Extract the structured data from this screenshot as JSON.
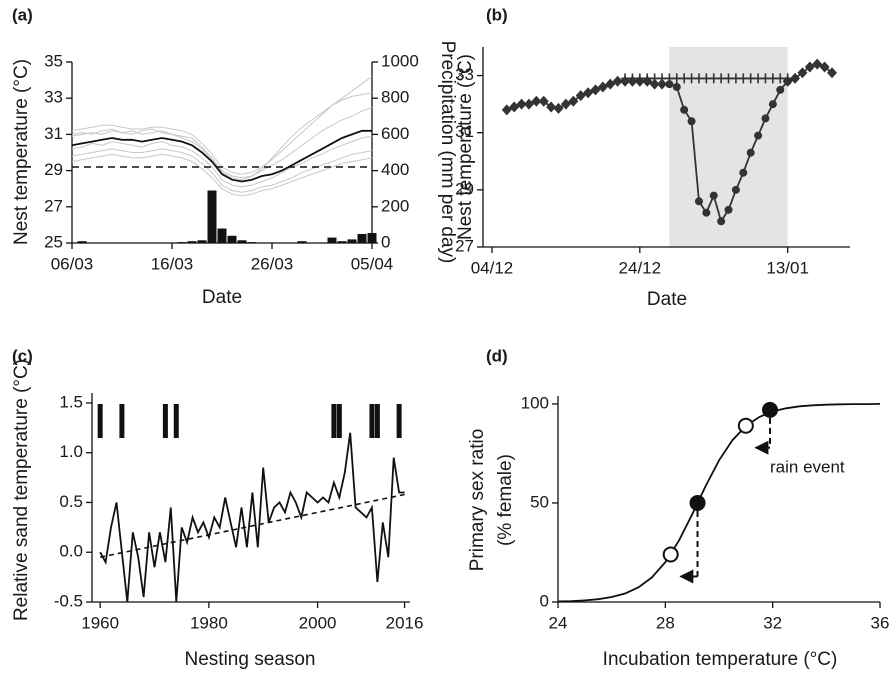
{
  "chart_data": [
    {
      "type": "line",
      "panel_label": "(a)",
      "xlabel": "Date",
      "ylabel": "Nest temperature (°C)",
      "y2label": "Precipitation (mm per day)",
      "x": [
        "06/03",
        "07/03",
        "08/03",
        "09/03",
        "10/03",
        "11/03",
        "12/03",
        "13/03",
        "14/03",
        "15/03",
        "16/03",
        "17/03",
        "18/03",
        "19/03",
        "20/03",
        "21/03",
        "22/03",
        "23/03",
        "24/03",
        "25/03",
        "26/03",
        "27/03",
        "28/03",
        "29/03",
        "30/03",
        "31/03",
        "01/04",
        "02/04",
        "03/04",
        "04/04",
        "05/04"
      ],
      "xticks": [
        "06/03",
        "16/03",
        "26/03",
        "05/04"
      ],
      "ylim": [
        25,
        35
      ],
      "yticks": [
        25,
        27,
        29,
        31,
        33,
        35
      ],
      "y2lim": [
        0,
        1000
      ],
      "y2ticks": [
        0,
        200,
        400,
        600,
        800,
        1000
      ],
      "hline": 29.2,
      "series": [
        {
          "color": "#c8c8c8",
          "values": [
            31.2,
            31.3,
            31.4,
            31.5,
            31.5,
            31.4,
            31.3,
            31.3,
            31.4,
            31.4,
            31.3,
            31.2,
            31.0,
            30.5,
            29.9,
            29.2,
            28.9,
            28.8,
            28.9,
            29.2,
            29.6,
            30.1,
            30.6,
            31.1,
            31.6,
            32.1,
            32.6,
            33.0,
            33.4,
            33.8,
            34.2
          ]
        },
        {
          "color": "#c8c8c8",
          "values": [
            29.8,
            29.9,
            30.0,
            30.1,
            30.2,
            30.1,
            30.0,
            30.0,
            30.1,
            30.2,
            30.1,
            30.0,
            29.8,
            29.4,
            28.9,
            28.2,
            27.9,
            27.8,
            27.9,
            28.1,
            28.2,
            28.4,
            28.6,
            28.9,
            29.1,
            29.3,
            29.5,
            29.7,
            29.9,
            30.0,
            30.1
          ]
        },
        {
          "color": "#c8c8c8",
          "values": [
            30.9,
            31.0,
            31.1,
            31.0,
            31.2,
            31.1,
            31.2,
            31.0,
            31.1,
            31.2,
            31.0,
            30.9,
            30.8,
            30.3,
            29.7,
            29.0,
            28.7,
            28.6,
            28.7,
            29.0,
            29.3,
            29.6,
            30.0,
            30.4,
            30.8,
            31.2,
            31.5,
            31.8,
            32.0,
            32.3,
            32.5
          ]
        },
        {
          "color": "#c8c8c8",
          "values": [
            30.2,
            30.3,
            30.5,
            30.4,
            30.6,
            30.5,
            30.4,
            30.3,
            30.5,
            30.6,
            30.4,
            30.3,
            30.1,
            29.7,
            29.2,
            28.5,
            28.2,
            28.1,
            28.2,
            28.4,
            28.6,
            28.9,
            29.2,
            29.4,
            29.7,
            29.9,
            30.2,
            30.4,
            30.6,
            30.8,
            30.9
          ]
        },
        {
          "color": "#c8c8c8",
          "values": [
            31.0,
            31.1,
            31.0,
            31.2,
            31.3,
            31.1,
            31.0,
            31.2,
            31.3,
            31.1,
            31.0,
            30.8,
            30.6,
            30.2,
            29.6,
            28.9,
            28.6,
            28.5,
            28.7,
            29.1,
            29.7,
            30.3,
            30.9,
            31.4,
            31.8,
            32.2,
            32.6,
            32.9,
            33.1,
            33.2,
            33.3
          ]
        },
        {
          "color": "#c8c8c8",
          "values": [
            29.5,
            29.6,
            29.7,
            29.8,
            29.9,
            29.8,
            29.7,
            29.7,
            29.8,
            29.9,
            29.8,
            29.7,
            29.5,
            29.1,
            28.6,
            28.0,
            27.7,
            27.6,
            27.7,
            27.9,
            28.0,
            28.2,
            28.4,
            28.6,
            28.8,
            29.0,
            29.2,
            29.4,
            29.5,
            29.6,
            29.7
          ]
        },
        {
          "color": "#111111",
          "values": [
            30.4,
            30.5,
            30.6,
            30.7,
            30.8,
            30.7,
            30.7,
            30.6,
            30.7,
            30.8,
            30.7,
            30.6,
            30.4,
            30.0,
            29.5,
            28.8,
            28.5,
            28.4,
            28.5,
            28.7,
            28.8,
            29.0,
            29.3,
            29.6,
            29.9,
            30.2,
            30.5,
            30.8,
            31.0,
            31.2,
            31.2
          ]
        },
        {
          "type": "bar",
          "axis": "y2",
          "color": "#111111",
          "values": [
            0,
            10,
            0,
            0,
            0,
            0,
            0,
            0,
            0,
            0,
            0,
            5,
            10,
            15,
            290,
            80,
            40,
            15,
            5,
            0,
            0,
            0,
            0,
            10,
            0,
            0,
            30,
            10,
            20,
            50,
            55
          ]
        }
      ]
    },
    {
      "type": "line",
      "panel_label": "(b)",
      "xlabel": "Date",
      "ylabel": "Nest temperature (°C)",
      "x": [
        "04/12",
        "05/12",
        "06/12",
        "07/12",
        "08/12",
        "09/12",
        "10/12",
        "11/12",
        "12/12",
        "13/12",
        "14/12",
        "15/12",
        "16/12",
        "17/12",
        "18/12",
        "19/12",
        "20/12",
        "21/12",
        "22/12",
        "23/12",
        "24/12",
        "25/12",
        "26/12",
        "27/12",
        "28/12",
        "29/12",
        "30/12",
        "31/12",
        "01/01",
        "02/01",
        "03/01",
        "04/01",
        "05/01",
        "06/01",
        "07/01",
        "08/01",
        "09/01",
        "10/01",
        "11/01",
        "12/01",
        "13/01",
        "14/01",
        "15/01",
        "16/01",
        "17/01",
        "18/01",
        "19/01"
      ],
      "xticks": [
        "04/12",
        "24/12",
        "13/01"
      ],
      "ylim": [
        27,
        34
      ],
      "yticks": [
        27,
        29,
        31,
        33
      ],
      "shade": [
        "28/12",
        "13/01"
      ],
      "series": [
        {
          "color": "#333333",
          "marker": "diamond",
          "values": [
            null,
            null,
            31.8,
            31.9,
            32.0,
            32.0,
            32.1,
            32.1,
            31.9,
            31.85,
            32.0,
            32.1,
            32.3,
            32.4,
            32.5,
            32.6,
            32.7,
            32.8,
            32.8,
            32.8,
            32.8,
            32.8,
            32.7,
            32.7,
            null,
            null,
            null,
            null,
            null,
            null,
            null,
            null,
            null,
            null,
            null,
            null,
            null,
            null,
            null,
            null,
            32.8,
            32.9,
            33.1,
            33.3,
            33.4,
            33.3,
            33.1
          ]
        },
        {
          "color": "#333333",
          "marker": "plus",
          "values": [
            null,
            null,
            null,
            null,
            null,
            null,
            null,
            null,
            null,
            null,
            null,
            null,
            null,
            null,
            null,
            null,
            null,
            null,
            32.9,
            32.9,
            32.9,
            32.9,
            32.9,
            32.9,
            32.9,
            32.9,
            32.9,
            32.9,
            32.9,
            32.9,
            32.9,
            32.9,
            32.9,
            32.9,
            32.9,
            32.9,
            32.9,
            32.9,
            32.9,
            32.9,
            32.9,
            null,
            null,
            null,
            null,
            null,
            null
          ]
        },
        {
          "color": "#333333",
          "marker": "circle",
          "values": [
            null,
            null,
            null,
            null,
            null,
            null,
            null,
            null,
            null,
            null,
            null,
            null,
            null,
            null,
            null,
            null,
            null,
            null,
            null,
            null,
            null,
            null,
            null,
            null,
            32.7,
            32.6,
            31.8,
            31.4,
            28.6,
            28.2,
            28.8,
            27.9,
            28.3,
            29.0,
            29.6,
            30.3,
            30.9,
            31.5,
            32.0,
            32.5,
            32.8,
            null,
            null,
            null,
            null,
            null,
            null
          ]
        }
      ]
    },
    {
      "type": "line",
      "panel_label": "(c)",
      "xlabel": "Nesting season",
      "ylabel": "Relative sand temperature (°C)",
      "x": [
        1960,
        1961,
        1962,
        1963,
        1964,
        1965,
        1966,
        1967,
        1968,
        1969,
        1970,
        1971,
        1972,
        1973,
        1974,
        1975,
        1976,
        1977,
        1978,
        1979,
        1980,
        1981,
        1982,
        1983,
        1984,
        1985,
        1986,
        1987,
        1988,
        1989,
        1990,
        1991,
        1992,
        1993,
        1994,
        1995,
        1996,
        1997,
        1998,
        1999,
        2000,
        2001,
        2002,
        2003,
        2004,
        2005,
        2006,
        2007,
        2008,
        2009,
        2010,
        2011,
        2012,
        2013,
        2014,
        2015,
        2016
      ],
      "values": [
        0.0,
        -0.1,
        0.25,
        0.5,
        0.0,
        -0.5,
        0.2,
        -0.05,
        -0.45,
        0.2,
        -0.15,
        0.2,
        -0.1,
        0.45,
        -0.5,
        0.25,
        0.1,
        0.35,
        0.2,
        0.3,
        0.15,
        0.35,
        0.25,
        0.55,
        0.3,
        0.05,
        0.45,
        0.05,
        0.6,
        0.05,
        0.85,
        0.3,
        0.45,
        0.5,
        0.4,
        0.6,
        0.5,
        0.35,
        0.6,
        0.55,
        0.5,
        0.55,
        0.5,
        0.7,
        0.55,
        0.8,
        1.2,
        0.45,
        0.4,
        0.35,
        0.45,
        -0.3,
        0.3,
        -0.05,
        0.95,
        0.6,
        0.6
      ],
      "color": "#111111",
      "xlim": [
        1958.5,
        2017
      ],
      "xticks": [
        1960,
        1980,
        2000,
        2016
      ],
      "ylim": [
        -0.5,
        1.6
      ],
      "yticks": [
        -0.5,
        {
          "value": 0,
          "label": "0.0"
        },
        0.5,
        {
          "value": 1,
          "label": "1.0"
        },
        1.5
      ],
      "trend": {
        "x": [
          1960,
          2016
        ],
        "values": [
          -0.05,
          0.58
        ]
      },
      "event_years": [
        1960,
        1964,
        1972,
        1974,
        2003,
        2004,
        2010,
        2011,
        2015
      ]
    },
    {
      "type": "line",
      "panel_label": "(d)",
      "xlabel": "Incubation temperature (°C)",
      "ylabel": [
        "Primary sex ratio",
        "(% female)"
      ],
      "x": [
        24,
        24.5,
        25,
        25.5,
        26,
        26.5,
        27,
        27.5,
        28,
        28.5,
        29,
        29.5,
        30,
        30.5,
        31,
        31.5,
        32,
        32.5,
        33,
        33.5,
        34,
        34.5,
        35,
        35.5,
        36
      ],
      "values": [
        0.3,
        0.45,
        0.8,
        1.4,
        2.5,
        4.3,
        7.4,
        12.4,
        20.1,
        30.9,
        44.3,
        58.5,
        71.5,
        81.7,
        88.8,
        93.4,
        96.2,
        97.8,
        98.8,
        99.3,
        99.6,
        99.8,
        99.9,
        99.9,
        100
      ],
      "color": "#111111",
      "xlim": [
        24,
        36
      ],
      "xticks": [
        24,
        28,
        32,
        36
      ],
      "ylim": [
        0,
        104
      ],
      "yticks": [
        0,
        50,
        100
      ],
      "points": {
        "x": [
          28.2,
          29.2,
          31.0,
          31.9
        ],
        "values": [
          24,
          50,
          89,
          97
        ],
        "filled": [
          false,
          true,
          false,
          true
        ]
      },
      "annotation": "rain event"
    }
  ]
}
